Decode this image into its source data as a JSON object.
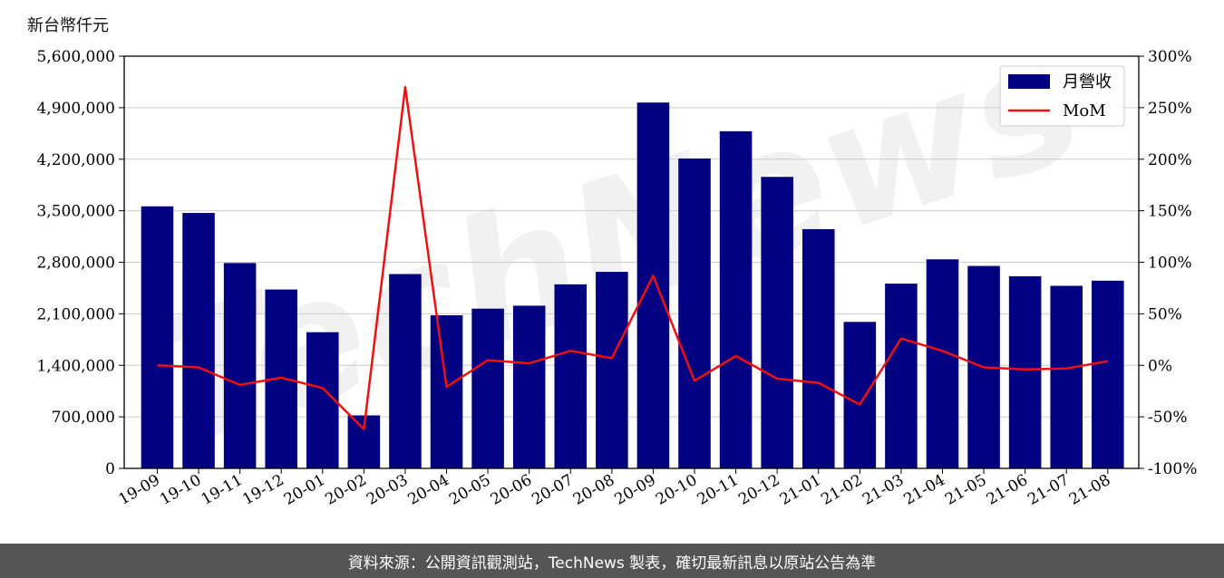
{
  "unit_label": "新台幣仟元",
  "footer": "資料來源：公開資訊觀測站，TechNews 製表，確切最新訊息以原站公告為準",
  "watermark": "TechNews",
  "colors": {
    "bar": "#000080",
    "line": "#ee1111",
    "grid": "#cccccc",
    "watermark": "#e8e8e8",
    "watermark_accent": "#fbe3e3"
  },
  "chart_data": {
    "type": "bar",
    "categories": [
      "19-09",
      "19-10",
      "19-11",
      "19-12",
      "20-01",
      "20-02",
      "20-03",
      "20-04",
      "20-05",
      "20-06",
      "20-07",
      "20-08",
      "20-09",
      "20-10",
      "20-11",
      "20-12",
      "21-01",
      "21-02",
      "21-03",
      "21-04",
      "21-05",
      "21-06",
      "21-07",
      "21-08"
    ],
    "series": [
      {
        "name": "月營收",
        "type": "bar",
        "axis": "left",
        "values": [
          3560000,
          3470000,
          2790000,
          2430000,
          1850000,
          720000,
          2640000,
          2080000,
          2170000,
          2210000,
          2500000,
          2670000,
          4970000,
          4210000,
          4580000,
          3960000,
          3250000,
          1990000,
          2510000,
          2840000,
          2750000,
          2610000,
          2480000,
          2550000
        ]
      },
      {
        "name": "MoM",
        "type": "line",
        "axis": "right",
        "values": [
          0,
          -2,
          -19,
          -12,
          -22,
          -62,
          270,
          -21,
          5,
          2,
          14,
          7,
          87,
          -15,
          9,
          -13,
          -17,
          -38,
          26,
          14,
          -2,
          -4,
          -3,
          4
        ]
      }
    ],
    "y_left": {
      "min": 0,
      "max": 5600000,
      "ticks": [
        "0",
        "700,000",
        "1,400,000",
        "2,100,000",
        "2,800,000",
        "3,500,000",
        "4,200,000",
        "4,900,000",
        "5,600,000"
      ],
      "tick_values": [
        0,
        700000,
        1400000,
        2100000,
        2800000,
        3500000,
        4200000,
        4900000,
        5600000
      ]
    },
    "y_right": {
      "min": -100,
      "max": 300,
      "ticks": [
        "-100%",
        "-50%",
        "0%",
        "50%",
        "100%",
        "150%",
        "200%",
        "250%",
        "300%"
      ],
      "tick_values": [
        -100,
        -50,
        0,
        50,
        100,
        150,
        200,
        250,
        300
      ]
    },
    "grid": true,
    "legend": "top-right"
  }
}
